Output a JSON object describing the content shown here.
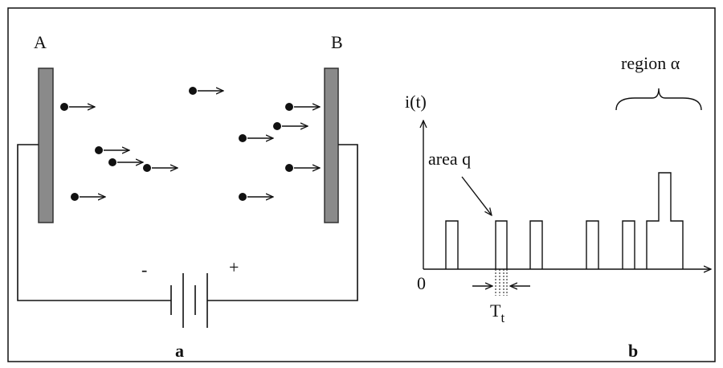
{
  "panel_a": {
    "left_plate_label": "A",
    "right_plate_label": "B",
    "minus_label": "-",
    "plus_label": "+",
    "caption": "a"
  },
  "panel_b": {
    "y_axis_label": "i(t)",
    "annotation": "area q",
    "origin_label": "0",
    "pulse_width_label": "T",
    "pulse_width_subscript": "t",
    "region_label": "region α",
    "caption": "b"
  }
}
